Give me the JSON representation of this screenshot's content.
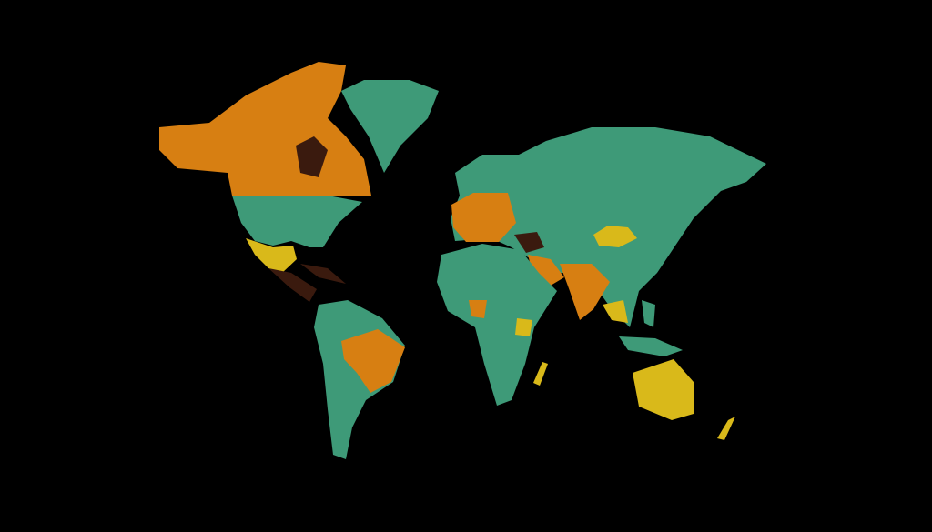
{
  "map": {
    "background": "#000000",
    "colors": {
      "green": "#3e9a78",
      "orange": "#d77f12",
      "yellow": "#d9b91a",
      "dark": "#3a1a0e"
    }
  }
}
